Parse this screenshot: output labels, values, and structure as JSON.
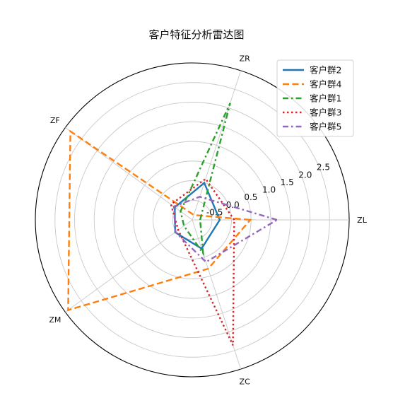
{
  "chart_data": {
    "type": "radar",
    "title": "客户特征分析雷达图",
    "axes": [
      "ZL",
      "ZR",
      "ZF",
      "ZM",
      "ZC"
    ],
    "rlim": [
      -1,
      3
    ],
    "rticks": [
      -0.5,
      0.0,
      0.5,
      1.0,
      1.5,
      2.0,
      2.5
    ],
    "rtick_labels": [
      "-0.5",
      "0.0",
      "0.5",
      "1.0",
      "1.5",
      "2.0",
      "2.5"
    ],
    "grid": true,
    "legend_position": "upper-right",
    "series": [
      {
        "name": "客户群2",
        "color": "#1f77b4",
        "line_style": "solid",
        "values": [
          -0.3,
          -0.01,
          -0.45,
          -0.46,
          -0.23
        ]
      },
      {
        "name": "客户群4",
        "color": "#ff7f0e",
        "line_style": "dashed",
        "values": [
          0.48,
          -0.87,
          2.84,
          2.91,
          0.31
        ]
      },
      {
        "name": "客户群1",
        "color": "#2ca02c",
        "line_style": "dashdot",
        "values": [
          -0.8,
          2.13,
          -0.63,
          -0.74,
          -0.1
        ]
      },
      {
        "name": "客户群3",
        "color": "#d62728",
        "line_style": "dotted",
        "values": [
          0.07,
          0.1,
          -0.33,
          -0.56,
          2.36
        ]
      },
      {
        "name": "客户群5",
        "color": "#9467bd",
        "line_style": "dashdot",
        "values": [
          1.16,
          -0.38,
          -0.42,
          -0.47,
          0.13
        ]
      }
    ]
  }
}
